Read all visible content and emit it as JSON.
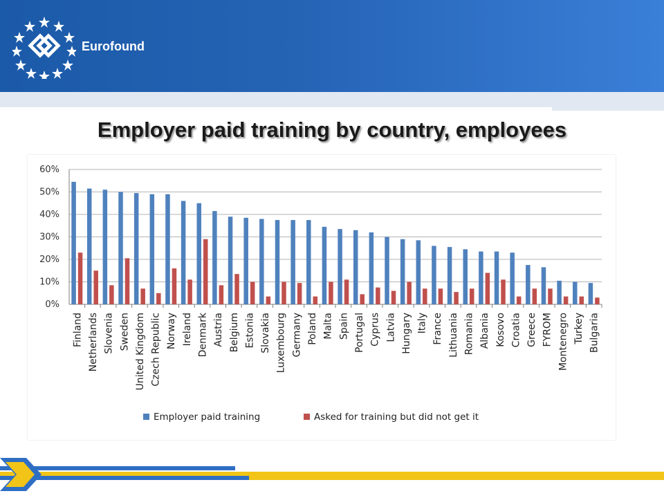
{
  "header": {
    "brand": "Eurofound",
    "logo_icon": "eurofound-logo-icon"
  },
  "slide": {
    "title": "Employer paid training by country, employees"
  },
  "colors": {
    "series_1": "#4f81bd",
    "series_2": "#c0504d",
    "header_blue": "#2563b5",
    "footer_blue": "#2e6fc4",
    "footer_yellow": "#f2c418"
  },
  "chart_data": {
    "type": "bar",
    "title": "",
    "xlabel": "",
    "ylabel": "",
    "ylim": [
      0,
      60
    ],
    "yticks": [
      "0%",
      "10%",
      "20%",
      "30%",
      "40%",
      "50%",
      "60%"
    ],
    "grid": true,
    "legend_position": "bottom",
    "categories": [
      "Finland",
      "Netherlands",
      "Slovenia",
      "Sweden",
      "United Kingdom",
      "Czech Republic",
      "Norway",
      "Ireland",
      "Denmark",
      "Austria",
      "Belgium",
      "Estonia",
      "Slovakia",
      "Luxembourg",
      "Germany",
      "Poland",
      "Malta",
      "Spain",
      "Portugal",
      "Cyprus",
      "Latvia",
      "Hungary",
      "Italy",
      "France",
      "Lithuania",
      "Romania",
      "Albania",
      "Kosovo",
      "Croatia",
      "Greece",
      "FYROM",
      "Montenegro",
      "Turkey",
      "Bulgaria"
    ],
    "series": [
      {
        "name": "Employer paid training",
        "color": "#4f81bd",
        "values": [
          54.5,
          51.5,
          51,
          50,
          49.5,
          49,
          49,
          46,
          45,
          41.5,
          39,
          38.5,
          38,
          37.5,
          37.5,
          37.5,
          34.5,
          33.5,
          33,
          32,
          30,
          29,
          28.5,
          26,
          25.5,
          24.5,
          23.5,
          23.5,
          23,
          17.5,
          16.5,
          10.5,
          10,
          9.5
        ]
      },
      {
        "name": "Asked for training but did not get it",
        "color": "#c0504d",
        "values": [
          23,
          15,
          8.5,
          20.5,
          7,
          5,
          16,
          11,
          29,
          8.5,
          13.5,
          10,
          3.5,
          10,
          9.5,
          3.5,
          10,
          11,
          4.5,
          7.5,
          6,
          10,
          7,
          7,
          5.5,
          7,
          14,
          11,
          3.5,
          7,
          7,
          3.5,
          3.5,
          3
        ]
      }
    ]
  }
}
